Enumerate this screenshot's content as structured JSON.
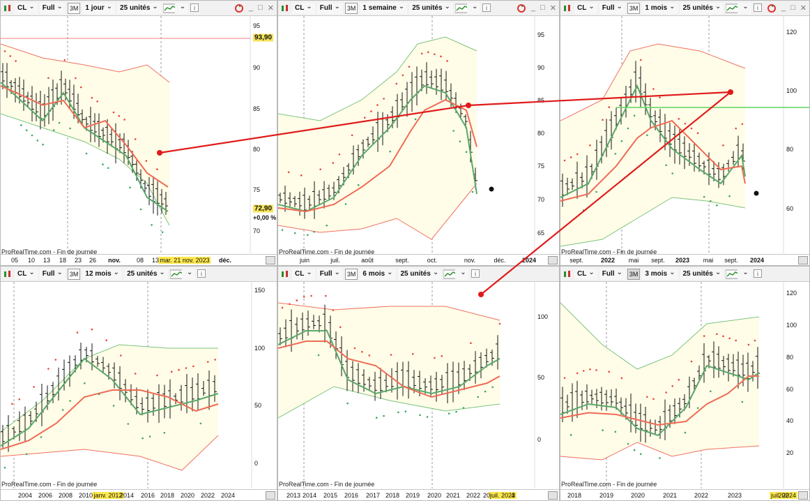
{
  "panels": [
    {
      "id": "p1",
      "symbol": "CL",
      "mode": "Full",
      "range_btn": "3M",
      "timeframe": "1 jour",
      "units": "25 unités",
      "credit": "ProRealTime.com - Fin de journée",
      "x_labels": [
        "05",
        "10",
        "13",
        "18",
        "23",
        "26",
        "nov.",
        "08",
        "13",
        "déc."
      ],
      "x_bold": [
        false,
        false,
        false,
        false,
        false,
        false,
        true,
        false,
        false,
        true
      ],
      "x_date_highlight": "mar. 21 nov. 2023",
      "y_labels": [
        "95",
        "90",
        "85",
        "80",
        "75",
        "70"
      ],
      "price_tag": "93,90",
      "last_price": "72,90",
      "last_change": "+0,00 %"
    },
    {
      "id": "p2",
      "symbol": "CL",
      "mode": "Full",
      "range_btn": "3M",
      "timeframe": "1 semaine",
      "units": "25 unités",
      "credit": "ProRealTime.com - Fin de journée",
      "x_labels": [
        "juin",
        "juil.",
        "août",
        "sept.",
        "oct.",
        "nov.",
        "déc.",
        "2024"
      ],
      "x_bold": [
        false,
        false,
        false,
        false,
        false,
        false,
        false,
        true
      ],
      "y_labels": [
        "95",
        "90",
        "85",
        "80",
        "75",
        "70",
        "65"
      ]
    },
    {
      "id": "p3",
      "symbol": "CL",
      "mode": "Full",
      "range_btn": "3M",
      "timeframe": "1 mois",
      "units": "25 unités",
      "credit": "ProRealTime.com - Fin de journée",
      "x_labels": [
        "sept.",
        "2022",
        "mai",
        "sept.",
        "2023",
        "mai",
        "sept.",
        "2024"
      ],
      "x_bold": [
        false,
        true,
        false,
        false,
        true,
        false,
        false,
        true
      ],
      "y_labels": [
        "120",
        "100",
        "80",
        "60"
      ]
    },
    {
      "id": "p4",
      "symbol": "CL",
      "mode": "Full",
      "range_btn": "3M",
      "timeframe": "12 mois",
      "units": "25 unités",
      "credit": "ProRealTime.com - Fin de journée",
      "x_labels": [
        "2004",
        "2006",
        "2008",
        "2010",
        "2014",
        "2016",
        "2018",
        "2020",
        "2022",
        "2024"
      ],
      "x_date_highlight": "janv. 2012",
      "y_labels": [
        "150",
        "100",
        "50",
        "0"
      ]
    },
    {
      "id": "p5",
      "symbol": "CL",
      "mode": "Full",
      "range_btn": "3M",
      "timeframe": "6 mois",
      "units": "25 unités",
      "credit": "ProRealTime.com - Fin de journée",
      "x_labels": [
        "2013",
        "2014",
        "2015",
        "2016",
        "2017",
        "2018",
        "2019",
        "2020",
        "2021",
        "2022",
        "20",
        "4"
      ],
      "x_date_highlight": "juil. 2023",
      "y_labels": [
        "100",
        "50",
        "0"
      ]
    },
    {
      "id": "p6",
      "symbol": "CL",
      "mode": "Full",
      "range_btn": "3M",
      "timeframe": "3 mois",
      "units": "25 unités",
      "credit": "ProRealTime.com - Fin de journée",
      "x_labels": [
        "2018",
        "2019",
        "2020",
        "2021",
        "2022",
        "2023",
        "202"
      ],
      "x_date_highlight": "juil. 2024",
      "y_labels": [
        "120",
        "100",
        "80",
        "60",
        "40",
        "20"
      ]
    }
  ],
  "colors": {
    "band_fill": "#fffde8",
    "band_red": "#f07060",
    "band_green": "#7cc47c",
    "ma_red": "#ef6b55",
    "ma_green": "#5aa86a",
    "sar_red": "#e8443a",
    "sar_green": "#3aa85a",
    "trend": "#e01a1a",
    "h_green": "#5fd35f"
  }
}
